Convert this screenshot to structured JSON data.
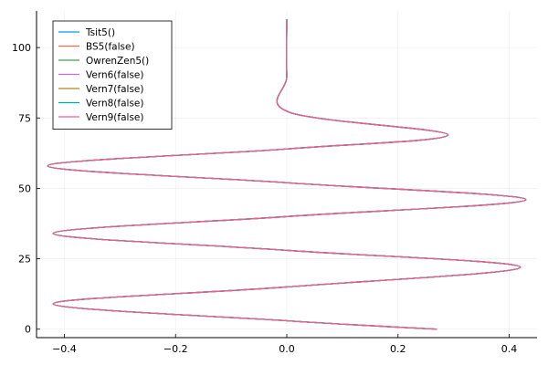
{
  "chart_data": {
    "type": "line",
    "xlim": [
      -0.45,
      0.45
    ],
    "ylim": [
      -3,
      113
    ],
    "x_ticks": [
      -0.4,
      -0.2,
      0.0,
      0.2,
      0.4
    ],
    "x_tick_labels": [
      "−0.4",
      "−0.2",
      "0.0",
      "0.2",
      "0.4"
    ],
    "y_ticks": [
      0,
      25,
      50,
      75,
      100
    ],
    "y_tick_labels": [
      "0",
      "25",
      "50",
      "75",
      "100"
    ],
    "grid": true,
    "legend_position": "top-left",
    "series": [
      {
        "name": "Tsit5()",
        "color": "#009AFA"
      },
      {
        "name": "BS5(false)",
        "color": "#E36F47"
      },
      {
        "name": "OwrenZen5()",
        "color": "#3EA44E"
      },
      {
        "name": "Vern6(false)",
        "color": "#C270D2"
      },
      {
        "name": "Vern7(false)",
        "color": "#AC8E18"
      },
      {
        "name": "Vern8(false)",
        "color": "#00A9AD"
      },
      {
        "name": "Vern9(false)",
        "color": "#ED5D92"
      }
    ],
    "points": {
      "x": [
        0.27,
        0.0,
        -0.42,
        0.0,
        0.42,
        0.0,
        -0.42,
        0.0,
        0.43,
        0.0,
        -0.43,
        0.0,
        0.29,
        0.005,
        0.0,
        0.0
      ],
      "y": [
        0,
        3,
        9,
        15,
        22,
        28,
        34,
        40,
        46,
        52,
        58,
        64,
        69,
        77,
        90,
        110
      ]
    }
  }
}
